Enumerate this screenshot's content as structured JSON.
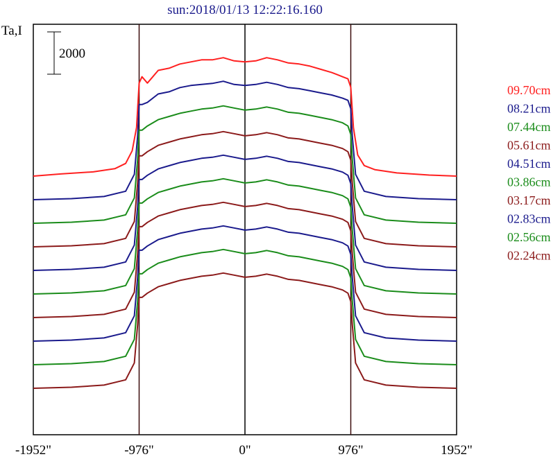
{
  "chart_data": {
    "type": "line",
    "title": "sun:2018/01/13 12:22:16.160",
    "ylabel": "Ta,I",
    "scale_bar_label": "2000",
    "scale_bar_value": 2000,
    "xlim": [
      -1952,
      1952
    ],
    "x_ticks": [
      {
        "value": -1952,
        "label": "-1952\""
      },
      {
        "value": -976,
        "label": "-976\""
      },
      {
        "value": 0,
        "label": "0\""
      },
      {
        "value": 976,
        "label": "976\""
      },
      {
        "value": 1952,
        "label": "1952\""
      }
    ],
    "vertical_lines": [
      -976,
      0,
      976
    ],
    "legend_position": "right",
    "grid": false,
    "colors": {
      "red": "#ff2020",
      "blue": "#1a1a8c",
      "green": "#1a8c1a",
      "darkred": "#8b1a1a"
    },
    "series": [
      {
        "name": "09.70cm",
        "color": "#ff2020",
        "offset": 0,
        "x": [
          -1952,
          -1700,
          -1400,
          -1200,
          -1100,
          -1040,
          -1000,
          -976,
          -950,
          -900,
          -850,
          -800,
          -700,
          -600,
          -500,
          -400,
          -300,
          -200,
          -100,
          0,
          100,
          200,
          300,
          400,
          500,
          600,
          700,
          800,
          850,
          900,
          950,
          976,
          1000,
          1040,
          1100,
          1200,
          1400,
          1700,
          1952
        ],
        "y": [
          0,
          100,
          200,
          350,
          600,
          1200,
          2300,
          4400,
          4700,
          4400,
          4700,
          5000,
          5100,
          5300,
          5400,
          5500,
          5500,
          5600,
          5450,
          5400,
          5450,
          5600,
          5500,
          5350,
          5300,
          5200,
          5050,
          4900,
          4800,
          4700,
          4600,
          4200,
          2300,
          1000,
          500,
          300,
          150,
          50,
          0
        ]
      },
      {
        "name": "08.21cm",
        "color": "#1a1a8c",
        "offset": 1,
        "x": [
          -1952,
          -1600,
          -1300,
          -1100,
          -1020,
          -990,
          -976,
          -950,
          -900,
          -800,
          -700,
          -600,
          -500,
          -400,
          -300,
          -200,
          -100,
          0,
          100,
          200,
          300,
          400,
          500,
          600,
          700,
          800,
          900,
          950,
          976,
          990,
          1020,
          1100,
          1300,
          1600,
          1952
        ],
        "y": [
          0,
          50,
          150,
          400,
          1200,
          3000,
          4500,
          4500,
          4600,
          5000,
          5100,
          5300,
          5400,
          5450,
          5500,
          5600,
          5450,
          5400,
          5450,
          5550,
          5450,
          5300,
          5250,
          5150,
          5050,
          4950,
          4800,
          4700,
          4300,
          3000,
          1200,
          400,
          150,
          50,
          0
        ]
      },
      {
        "name": "07.44cm",
        "color": "#1a8c1a",
        "offset": 2,
        "x": [
          -1952,
          -1600,
          -1300,
          -1100,
          -1020,
          -990,
          -976,
          -950,
          -900,
          -800,
          -700,
          -600,
          -500,
          -400,
          -300,
          -200,
          -100,
          0,
          100,
          200,
          300,
          400,
          500,
          600,
          700,
          800,
          900,
          950,
          976,
          990,
          1020,
          1100,
          1300,
          1600,
          1952
        ],
        "y": [
          0,
          50,
          150,
          400,
          1200,
          3000,
          4400,
          4400,
          4600,
          4900,
          5050,
          5200,
          5300,
          5400,
          5450,
          5550,
          5450,
          5350,
          5400,
          5500,
          5400,
          5250,
          5200,
          5100,
          5000,
          4900,
          4750,
          4600,
          4200,
          3000,
          1200,
          400,
          150,
          50,
          0
        ]
      },
      {
        "name": "05.61cm",
        "color": "#8b1a1a",
        "offset": 3,
        "x": [
          -1952,
          -1600,
          -1300,
          -1100,
          -1020,
          -990,
          -976,
          -950,
          -900,
          -800,
          -700,
          -600,
          -500,
          -400,
          -300,
          -200,
          -100,
          0,
          100,
          200,
          300,
          400,
          500,
          600,
          700,
          800,
          900,
          950,
          976,
          990,
          1020,
          1100,
          1300,
          1600,
          1952
        ],
        "y": [
          0,
          50,
          150,
          400,
          1200,
          3000,
          4300,
          4300,
          4500,
          4800,
          4950,
          5100,
          5200,
          5300,
          5350,
          5450,
          5350,
          5250,
          5300,
          5400,
          5300,
          5150,
          5100,
          5000,
          4900,
          4800,
          4650,
          4500,
          4100,
          3000,
          1200,
          400,
          150,
          50,
          0
        ]
      },
      {
        "name": "04.51cm",
        "color": "#1a1a8c",
        "offset": 4,
        "x": [
          -1952,
          -1600,
          -1300,
          -1100,
          -1020,
          -990,
          -976,
          -950,
          -900,
          -800,
          -700,
          -600,
          -500,
          -400,
          -300,
          -200,
          -100,
          0,
          100,
          200,
          300,
          400,
          500,
          600,
          700,
          800,
          900,
          950,
          976,
          990,
          1020,
          1100,
          1300,
          1600,
          1952
        ],
        "y": [
          0,
          50,
          150,
          400,
          1200,
          3000,
          4300,
          4300,
          4500,
          4800,
          4950,
          5100,
          5200,
          5300,
          5350,
          5450,
          5350,
          5250,
          5300,
          5400,
          5300,
          5150,
          5100,
          5000,
          4900,
          4800,
          4650,
          4500,
          4100,
          3000,
          1200,
          400,
          150,
          50,
          0
        ]
      },
      {
        "name": "03.86cm",
        "color": "#1a8c1a",
        "offset": 5,
        "x": [
          -1952,
          -1600,
          -1300,
          -1100,
          -1020,
          -990,
          -976,
          -950,
          -900,
          -800,
          -700,
          -600,
          -500,
          -400,
          -300,
          -200,
          -100,
          0,
          100,
          200,
          300,
          400,
          500,
          600,
          700,
          800,
          900,
          950,
          976,
          990,
          1020,
          1100,
          1300,
          1600,
          1952
        ],
        "y": [
          0,
          50,
          150,
          400,
          1200,
          3000,
          4300,
          4300,
          4500,
          4800,
          4950,
          5100,
          5200,
          5300,
          5350,
          5450,
          5350,
          5250,
          5300,
          5400,
          5300,
          5150,
          5100,
          5000,
          4900,
          4800,
          4650,
          4500,
          4100,
          3000,
          1200,
          400,
          150,
          50,
          0
        ]
      },
      {
        "name": "03.17cm",
        "color": "#8b1a1a",
        "offset": 6,
        "x": [
          -1952,
          -1600,
          -1300,
          -1100,
          -1020,
          -990,
          -976,
          -950,
          -900,
          -800,
          -700,
          -600,
          -500,
          -400,
          -300,
          -200,
          -100,
          0,
          100,
          200,
          300,
          400,
          500,
          600,
          700,
          800,
          900,
          950,
          976,
          990,
          1020,
          1100,
          1300,
          1600,
          1952
        ],
        "y": [
          0,
          50,
          150,
          400,
          1200,
          3000,
          4300,
          4300,
          4500,
          4800,
          4950,
          5100,
          5200,
          5300,
          5350,
          5450,
          5350,
          5250,
          5300,
          5400,
          5300,
          5150,
          5100,
          5000,
          4900,
          4800,
          4650,
          4500,
          4100,
          3000,
          1200,
          400,
          150,
          50,
          0
        ]
      },
      {
        "name": "02.83cm",
        "color": "#1a1a8c",
        "offset": 7,
        "x": [
          -1952,
          -1600,
          -1300,
          -1100,
          -1020,
          -990,
          -976,
          -950,
          -900,
          -800,
          -700,
          -600,
          -500,
          -400,
          -300,
          -200,
          -100,
          0,
          100,
          200,
          300,
          400,
          500,
          600,
          700,
          800,
          900,
          950,
          976,
          990,
          1020,
          1100,
          1300,
          1600,
          1952
        ],
        "y": [
          0,
          50,
          150,
          400,
          1200,
          3000,
          4300,
          4300,
          4500,
          4800,
          4950,
          5100,
          5200,
          5300,
          5350,
          5450,
          5350,
          5250,
          5300,
          5400,
          5300,
          5150,
          5100,
          5000,
          4900,
          4800,
          4650,
          4500,
          4100,
          3000,
          1200,
          400,
          150,
          50,
          0
        ]
      },
      {
        "name": "02.56cm",
        "color": "#1a8c1a",
        "offset": 8,
        "x": [
          -1952,
          -1600,
          -1300,
          -1100,
          -1020,
          -990,
          -976,
          -950,
          -900,
          -800,
          -700,
          -600,
          -500,
          -400,
          -300,
          -200,
          -100,
          0,
          100,
          200,
          300,
          400,
          500,
          600,
          700,
          800,
          900,
          950,
          976,
          990,
          1020,
          1100,
          1300,
          1600,
          1952
        ],
        "y": [
          0,
          50,
          150,
          400,
          1200,
          3000,
          4300,
          4300,
          4500,
          4800,
          4950,
          5100,
          5200,
          5300,
          5350,
          5450,
          5350,
          5250,
          5300,
          5400,
          5300,
          5150,
          5100,
          5000,
          4900,
          4800,
          4650,
          4500,
          4100,
          3000,
          1200,
          400,
          150,
          50,
          0
        ]
      },
      {
        "name": "02.24cm",
        "color": "#8b1a1a",
        "offset": 9,
        "x": [
          -1952,
          -1600,
          -1300,
          -1100,
          -1020,
          -990,
          -976,
          -950,
          -900,
          -800,
          -700,
          -600,
          -500,
          -400,
          -300,
          -200,
          -100,
          0,
          100,
          200,
          300,
          400,
          500,
          600,
          700,
          800,
          900,
          950,
          976,
          990,
          1020,
          1100,
          1300,
          1600,
          1952
        ],
        "y": [
          0,
          50,
          150,
          400,
          1200,
          3000,
          4300,
          4300,
          4500,
          4800,
          4950,
          5100,
          5200,
          5300,
          5350,
          5450,
          5350,
          5250,
          5300,
          5400,
          5300,
          5150,
          5100,
          5000,
          4900,
          4800,
          4650,
          4500,
          4100,
          3000,
          1200,
          400,
          150,
          50,
          0
        ]
      }
    ]
  }
}
